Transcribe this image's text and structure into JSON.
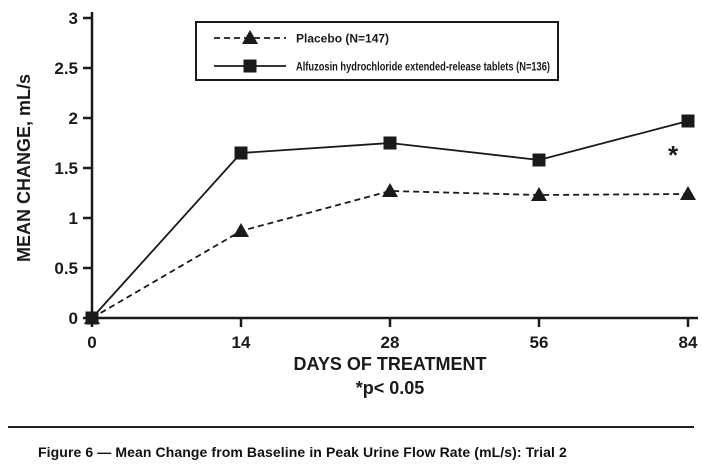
{
  "colors": {
    "ink": "#1a1a1a",
    "background": "#ffffff"
  },
  "chart_data": {
    "type": "line",
    "title": "",
    "xlabel": "DAYS OF TREATMENT",
    "ylabel": "MEAN CHANGE, mL/s",
    "footnote": "*p< 0.05",
    "x": [
      0,
      14,
      28,
      56,
      84
    ],
    "ylim": [
      0,
      3
    ],
    "yticks": [
      0,
      0.5,
      1,
      1.5,
      2,
      2.5,
      3
    ],
    "grid": false,
    "legend_position": "top-center",
    "series": [
      {
        "name": "Placebo (N=147)",
        "marker": "triangle",
        "line": "dashed",
        "values": [
          0,
          0.87,
          1.27,
          1.23,
          1.24
        ]
      },
      {
        "name": "Alfuzosin hydrochloride extended-release tablets (N=136)",
        "marker": "square",
        "line": "solid",
        "values": [
          0,
          1.65,
          1.75,
          1.58,
          1.97
        ]
      }
    ],
    "annotation": {
      "text": "*",
      "x": 84,
      "y": 1.62
    }
  },
  "caption": "Figure 6 — Mean Change from Baseline in Peak Urine Flow Rate (mL/s): Trial 2"
}
